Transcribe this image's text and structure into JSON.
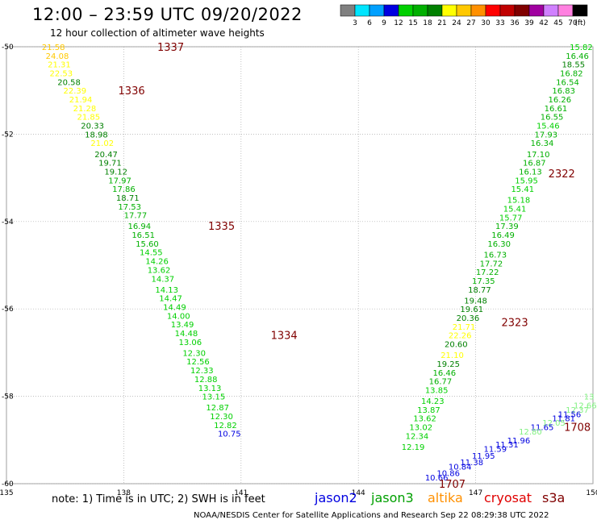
{
  "header": {
    "title": "12:00 – 23:59 UTC 09/20/2022",
    "subtitle": "12 hour collection of altimeter wave heights"
  },
  "legend": {
    "unit_label": "(ft)",
    "bins": [
      {
        "label": "3",
        "color": "#808080"
      },
      {
        "label": "6",
        "color": "#00e5ff"
      },
      {
        "label": "9",
        "color": "#00a0ff"
      },
      {
        "label": "12",
        "color": "#0000e0"
      },
      {
        "label": "15",
        "color": "#00d000"
      },
      {
        "label": "18",
        "color": "#00b000"
      },
      {
        "label": "21",
        "color": "#008000"
      },
      {
        "label": "24",
        "color": "#ffff00"
      },
      {
        "label": "27",
        "color": "#ffc800"
      },
      {
        "label": "30",
        "color": "#ff9000"
      },
      {
        "label": "33",
        "color": "#ff0000"
      },
      {
        "label": "36",
        "color": "#c00000"
      },
      {
        "label": "39",
        "color": "#800000"
      },
      {
        "label": "42",
        "color": "#a000a0"
      },
      {
        "label": "45",
        "color": "#d080ff"
      },
      {
        "label": "70",
        "color": "#ff80e0"
      },
      {
        "label": "",
        "color": "#000000"
      }
    ]
  },
  "axes": {
    "lon_ticks": [
      "135",
      "138",
      "141",
      "144",
      "147",
      "150"
    ],
    "lat_ticks": [
      "-50",
      "-52",
      "-54",
      "-56",
      "-58",
      "-60"
    ]
  },
  "tracks": [
    {
      "track_label": "1337",
      "track_lon": 139.2,
      "track_lat": -50.0,
      "points": [
        {
          "lon": 136.2,
          "lat": -50.0,
          "v": "21.58",
          "color": "#ffc800"
        },
        {
          "lon": 136.3,
          "lat": -50.2,
          "v": "24.08",
          "color": "#ffc800"
        },
        {
          "lon": 136.35,
          "lat": -50.4,
          "v": "21.31",
          "color": "#ffff00"
        },
        {
          "lon": 136.4,
          "lat": -50.6,
          "v": "22.53",
          "color": "#ffff00"
        },
        {
          "lon": 136.6,
          "lat": -50.8,
          "v": "20.58",
          "color": "#008000"
        },
        {
          "lon": 136.75,
          "lat": -51.0,
          "v": "22.39",
          "color": "#ffff00"
        },
        {
          "lon": 136.9,
          "lat": -51.2,
          "v": "21.94",
          "color": "#ffff00"
        },
        {
          "lon": 137.0,
          "lat": -51.4,
          "v": "21.28",
          "color": "#ffff00"
        },
        {
          "lon": 137.1,
          "lat": -51.6,
          "v": "21.85",
          "color": "#ffff00"
        },
        {
          "lon": 137.2,
          "lat": -51.8,
          "v": "20.33",
          "color": "#008000"
        },
        {
          "lon": 137.3,
          "lat": -52.0,
          "v": "18.98",
          "color": "#008000"
        },
        {
          "lon": 137.45,
          "lat": -52.2,
          "v": "21.02",
          "color": "#ffff00"
        },
        {
          "lon": 137.55,
          "lat": -52.45,
          "v": "20.47",
          "color": "#008000"
        },
        {
          "lon": 137.65,
          "lat": -52.65,
          "v": "19.71",
          "color": "#008000"
        },
        {
          "lon": 137.8,
          "lat": -52.85,
          "v": "19.12",
          "color": "#008000"
        },
        {
          "lon": 137.9,
          "lat": -53.05,
          "v": "17.97",
          "color": "#00b000"
        },
        {
          "lon": 138.0,
          "lat": -53.25,
          "v": "17.86",
          "color": "#00b000"
        },
        {
          "lon": 138.1,
          "lat": -53.45,
          "v": "18.71",
          "color": "#008000"
        },
        {
          "lon": 138.15,
          "lat": -53.65,
          "v": "17.53",
          "color": "#00b000"
        },
        {
          "lon": 138.3,
          "lat": -53.85,
          "v": "17.77",
          "color": "#00b000"
        },
        {
          "lon": 138.4,
          "lat": -54.1,
          "v": "16.94",
          "color": "#00b000"
        },
        {
          "lon": 138.5,
          "lat": -54.3,
          "v": "16.51",
          "color": "#00b000"
        },
        {
          "lon": 138.6,
          "lat": -54.5,
          "v": "15.60",
          "color": "#00b000"
        },
        {
          "lon": 138.7,
          "lat": -54.7,
          "v": "14.55",
          "color": "#00d000"
        },
        {
          "lon": 138.85,
          "lat": -54.9,
          "v": "14.26",
          "color": "#00d000"
        },
        {
          "lon": 138.9,
          "lat": -55.1,
          "v": "13.62",
          "color": "#00d000"
        },
        {
          "lon": 139.0,
          "lat": -55.3,
          "v": "14.37",
          "color": "#00d000"
        },
        {
          "lon": 139.1,
          "lat": -55.55,
          "v": "14.13",
          "color": "#00d000"
        },
        {
          "lon": 139.2,
          "lat": -55.75,
          "v": "14.47",
          "color": "#00d000"
        },
        {
          "lon": 139.3,
          "lat": -55.95,
          "v": "14.49",
          "color": "#00d000"
        },
        {
          "lon": 139.4,
          "lat": -56.15,
          "v": "14.00",
          "color": "#00d000"
        },
        {
          "lon": 139.5,
          "lat": -56.35,
          "v": "13.49",
          "color": "#00d000"
        },
        {
          "lon": 139.6,
          "lat": -56.55,
          "v": "14.48",
          "color": "#00d000"
        },
        {
          "lon": 139.7,
          "lat": -56.75,
          "v": "13.06",
          "color": "#00d000"
        },
        {
          "lon": 139.8,
          "lat": -57.0,
          "v": "12.30",
          "color": "#00d000"
        },
        {
          "lon": 139.9,
          "lat": -57.2,
          "v": "12.56",
          "color": "#00d000"
        },
        {
          "lon": 140.0,
          "lat": -57.4,
          "v": "12.33",
          "color": "#00d000"
        },
        {
          "lon": 140.1,
          "lat": -57.6,
          "v": "12.88",
          "color": "#00d000"
        },
        {
          "lon": 140.2,
          "lat": -57.8,
          "v": "13.13",
          "color": "#00d000"
        },
        {
          "lon": 140.3,
          "lat": -58.0,
          "v": "13.15",
          "color": "#00d000"
        },
        {
          "lon": 140.4,
          "lat": -58.25,
          "v": "12.87",
          "color": "#00d000"
        },
        {
          "lon": 140.5,
          "lat": -58.45,
          "v": "12.30",
          "color": "#00d000"
        },
        {
          "lon": 140.6,
          "lat": -58.65,
          "v": "12.82",
          "color": "#00d000"
        },
        {
          "lon": 140.7,
          "lat": -58.85,
          "v": "10.75",
          "color": "#0000e0"
        }
      ]
    },
    {
      "track_label": "1336",
      "track_lon": 138.2,
      "track_lat": -51.0,
      "points": []
    },
    {
      "track_label": "1335",
      "track_lon": 140.5,
      "track_lat": -54.1,
      "points": []
    },
    {
      "track_label": "1334",
      "track_lon": 142.1,
      "track_lat": -56.6,
      "points": []
    },
    {
      "track_label": "2322",
      "track_lon": 149.2,
      "track_lat": -52.9,
      "points": [
        {
          "lon": 149.7,
          "lat": -50.0,
          "v": "15.82",
          "color": "#00d000"
        },
        {
          "lon": 149.6,
          "lat": -50.2,
          "v": "16.46",
          "color": "#00b000"
        },
        {
          "lon": 149.5,
          "lat": -50.4,
          "v": "18.55",
          "color": "#008000"
        },
        {
          "lon": 149.45,
          "lat": -50.6,
          "v": "16.82",
          "color": "#00b000"
        },
        {
          "lon": 149.35,
          "lat": -50.8,
          "v": "16.54",
          "color": "#00b000"
        },
        {
          "lon": 149.25,
          "lat": -51.0,
          "v": "16.83",
          "color": "#00b000"
        },
        {
          "lon": 149.15,
          "lat": -51.2,
          "v": "16.26",
          "color": "#00b000"
        },
        {
          "lon": 149.05,
          "lat": -51.4,
          "v": "16.61",
          "color": "#00b000"
        },
        {
          "lon": 148.95,
          "lat": -51.6,
          "v": "16.55",
          "color": "#00b000"
        },
        {
          "lon": 148.85,
          "lat": -51.8,
          "v": "15.46",
          "color": "#00d000"
        },
        {
          "lon": 148.8,
          "lat": -52.0,
          "v": "17.93",
          "color": "#00b000"
        },
        {
          "lon": 148.7,
          "lat": -52.2,
          "v": "16.34",
          "color": "#00b000"
        },
        {
          "lon": 148.6,
          "lat": -52.45,
          "v": "17.10",
          "color": "#00b000"
        },
        {
          "lon": 148.5,
          "lat": -52.65,
          "v": "16.87",
          "color": "#00b000"
        },
        {
          "lon": 148.4,
          "lat": -52.85,
          "v": "16.13",
          "color": "#00b000"
        },
        {
          "lon": 148.3,
          "lat": -53.05,
          "v": "15.95",
          "color": "#00d000"
        },
        {
          "lon": 148.2,
          "lat": -53.25,
          "v": "15.41",
          "color": "#00d000"
        },
        {
          "lon": 148.1,
          "lat": -53.5,
          "v": "15.18",
          "color": "#00d000"
        },
        {
          "lon": 148.0,
          "lat": -53.7,
          "v": "15.41",
          "color": "#00d000"
        },
        {
          "lon": 147.9,
          "lat": -53.9,
          "v": "15.77",
          "color": "#00d000"
        },
        {
          "lon": 147.8,
          "lat": -54.1,
          "v": "17.39",
          "color": "#00b000"
        },
        {
          "lon": 147.7,
          "lat": -54.3,
          "v": "16.49",
          "color": "#00b000"
        },
        {
          "lon": 147.6,
          "lat": -54.5,
          "v": "16.30",
          "color": "#00b000"
        },
        {
          "lon": 147.5,
          "lat": -54.75,
          "v": "16.73",
          "color": "#00b000"
        },
        {
          "lon": 147.4,
          "lat": -54.95,
          "v": "17.72",
          "color": "#00b000"
        },
        {
          "lon": 147.3,
          "lat": -55.15,
          "v": "17.22",
          "color": "#00b000"
        },
        {
          "lon": 147.2,
          "lat": -55.35,
          "v": "17.35",
          "color": "#00b000"
        },
        {
          "lon": 147.1,
          "lat": -55.55,
          "v": "18.77",
          "color": "#008000"
        },
        {
          "lon": 147.0,
          "lat": -55.8,
          "v": "19.48",
          "color": "#008000"
        },
        {
          "lon": 146.9,
          "lat": -56.0,
          "v": "19.61",
          "color": "#008000"
        },
        {
          "lon": 146.8,
          "lat": -56.2,
          "v": "20.36",
          "color": "#008000"
        },
        {
          "lon": 146.7,
          "lat": -56.4,
          "v": "21.71",
          "color": "#ffff00"
        },
        {
          "lon": 146.6,
          "lat": -56.6,
          "v": "22.26",
          "color": "#ffff00"
        },
        {
          "lon": 146.5,
          "lat": -56.8,
          "v": "20.60",
          "color": "#008000"
        },
        {
          "lon": 146.4,
          "lat": -57.05,
          "v": "21.10",
          "color": "#ffff00"
        },
        {
          "lon": 146.3,
          "lat": -57.25,
          "v": "19.25",
          "color": "#008000"
        },
        {
          "lon": 146.2,
          "lat": -57.45,
          "v": "16.46",
          "color": "#00b000"
        },
        {
          "lon": 146.1,
          "lat": -57.65,
          "v": "16.77",
          "color": "#00b000"
        },
        {
          "lon": 146.0,
          "lat": -57.85,
          "v": "13.85",
          "color": "#00d000"
        },
        {
          "lon": 145.9,
          "lat": -58.1,
          "v": "14.23",
          "color": "#00d000"
        },
        {
          "lon": 145.8,
          "lat": -58.3,
          "v": "13.87",
          "color": "#00d000"
        },
        {
          "lon": 145.7,
          "lat": -58.5,
          "v": "13.62",
          "color": "#00d000"
        },
        {
          "lon": 145.6,
          "lat": -58.7,
          "v": "13.02",
          "color": "#00d000"
        },
        {
          "lon": 145.5,
          "lat": -58.9,
          "v": "12.34",
          "color": "#00d000"
        },
        {
          "lon": 145.4,
          "lat": -59.15,
          "v": "12.19",
          "color": "#00d000"
        }
      ]
    },
    {
      "track_label": "2323",
      "track_lon": 148.0,
      "track_lat": -56.3,
      "points": []
    },
    {
      "track_label": "1708",
      "track_lon": 149.6,
      "track_lat": -58.7,
      "points": [
        {
          "lon": 149.9,
          "lat": -58.0,
          "v": "13",
          "color": "#80f080"
        },
        {
          "lon": 149.8,
          "lat": -58.2,
          "v": "12.66",
          "color": "#80f080"
        },
        {
          "lon": 149.6,
          "lat": -58.3,
          "v": "12.37",
          "color": "#80f080"
        },
        {
          "lon": 149.4,
          "lat": -58.4,
          "v": "11.56",
          "color": "#0000e0"
        },
        {
          "lon": 149.25,
          "lat": -58.5,
          "v": "11.81",
          "color": "#0000e0"
        },
        {
          "lon": 149.0,
          "lat": -58.6,
          "v": "12.05",
          "color": "#80f080"
        },
        {
          "lon": 148.7,
          "lat": -58.7,
          "v": "11.65",
          "color": "#0000e0"
        },
        {
          "lon": 148.4,
          "lat": -58.8,
          "v": "12.80",
          "color": "#80f080"
        },
        {
          "lon": 148.1,
          "lat": -59.0,
          "v": "11.96",
          "color": "#0000e0"
        },
        {
          "lon": 147.8,
          "lat": -59.1,
          "v": "11.31",
          "color": "#0000e0"
        },
        {
          "lon": 147.5,
          "lat": -59.2,
          "v": "11.59",
          "color": "#0000e0"
        },
        {
          "lon": 147.2,
          "lat": -59.35,
          "v": "11.95",
          "color": "#0000e0"
        },
        {
          "lon": 146.9,
          "lat": -59.5,
          "v": "11.38",
          "color": "#0000e0"
        },
        {
          "lon": 146.6,
          "lat": -59.6,
          "v": "10.84",
          "color": "#0000e0"
        },
        {
          "lon": 146.3,
          "lat": -59.75,
          "v": "10.86",
          "color": "#0000e0"
        },
        {
          "lon": 146.0,
          "lat": -59.85,
          "v": "10.66",
          "color": "#0000e0"
        }
      ]
    },
    {
      "track_label": "1707",
      "track_lon": 146.4,
      "track_lat": -60.0,
      "points": []
    }
  ],
  "footer": {
    "note": "note:  1) Time is in UTC;  2) SWH is in feet",
    "credit": "NOAA/NESDIS Center for Satellite Applications and Research     Sep 22 08:29:38 UTC 2022",
    "satellites": [
      {
        "name": "jason2",
        "color": "#0000e0"
      },
      {
        "name": "jason3",
        "color": "#00a000"
      },
      {
        "name": "altika",
        "color": "#ff9000"
      },
      {
        "name": "cryosat",
        "color": "#e00000"
      },
      {
        "name": "s3a",
        "color": "#800000"
      }
    ]
  }
}
